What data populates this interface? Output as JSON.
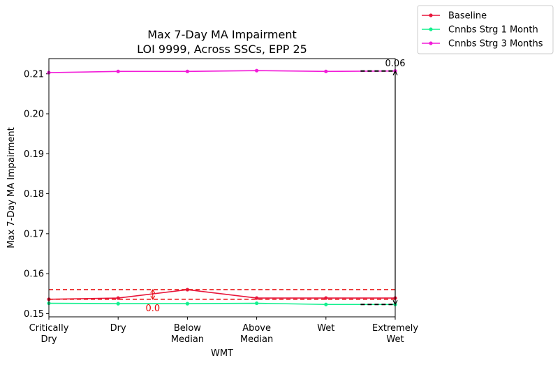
{
  "chart_data": {
    "type": "line",
    "title": "Max 7-Day MA Impairment",
    "subtitle": "LOI 9999, Across SSCs, EPP 25",
    "xlabel": "WMT",
    "ylabel": "Max 7-Day MA Impairment",
    "categories": [
      "Critically\nDry",
      "Dry",
      "Below\nMedian",
      "Above\nMedian",
      "Wet",
      "Extremely\nWet"
    ],
    "ylim": [
      0.1492,
      0.2138
    ],
    "yticks": [
      0.15,
      0.16,
      0.17,
      0.18,
      0.19,
      0.2,
      0.21
    ],
    "ytick_labels": [
      "0.15",
      "0.16",
      "0.17",
      "0.18",
      "0.19",
      "0.20",
      "0.21"
    ],
    "grid": false,
    "legend_position": "outside-top-right",
    "series": [
      {
        "name": "Baseline",
        "color": "#e8173c",
        "values": [
          0.1536,
          0.1539,
          0.156,
          0.1539,
          0.1539,
          0.1539
        ]
      },
      {
        "name": "Cnnbs Strg 1 Month",
        "color": "#12f08e",
        "values": [
          0.1526,
          0.1525,
          0.1525,
          0.1526,
          0.1523,
          0.1523
        ]
      },
      {
        "name": "Cnnbs Strg 3 Months",
        "color": "#f21bd8",
        "values": [
          0.2103,
          0.2106,
          0.2106,
          0.2108,
          0.2106,
          0.2107
        ]
      }
    ],
    "annotations": {
      "baseline_range": {
        "low": 0.1536,
        "high": 0.156,
        "label": "0.0",
        "color": "#e60000"
      },
      "spread": {
        "low": 0.1523,
        "high": 0.2107,
        "label": "0.06",
        "color": "#000000"
      }
    }
  }
}
